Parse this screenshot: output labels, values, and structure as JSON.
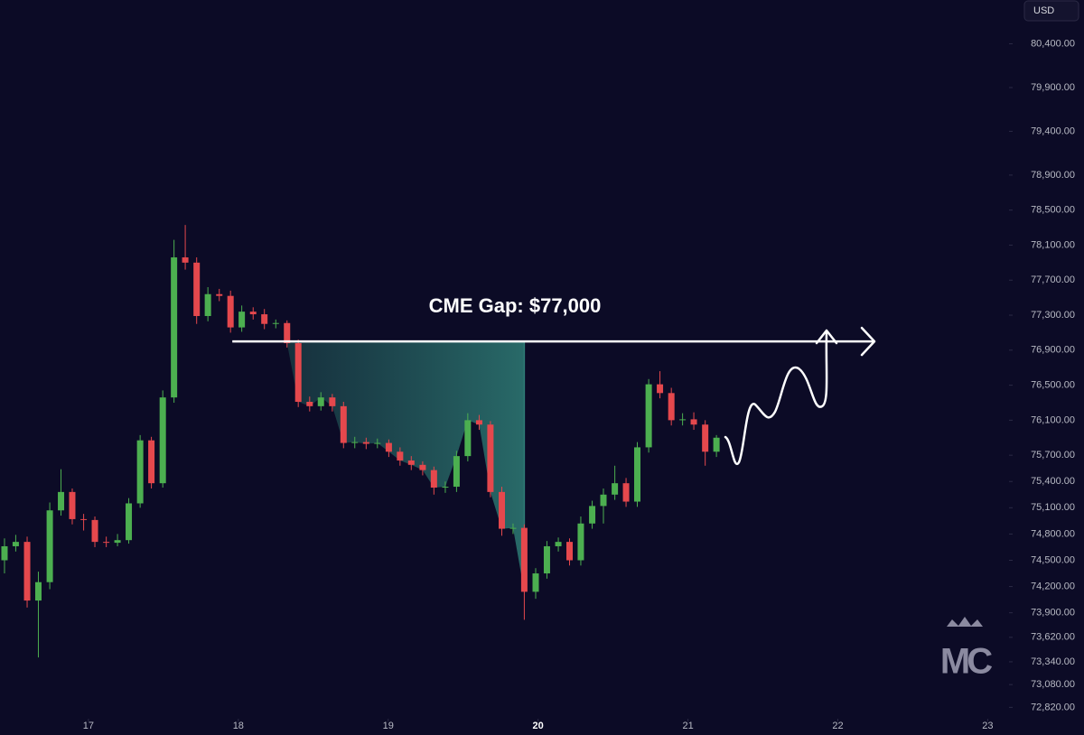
{
  "chart_data": {
    "type": "candlestick",
    "currency": "USD",
    "annotation": "CME Gap: $77,000",
    "gap_level": 77000,
    "logo": "MC",
    "up_color": "#4caf50",
    "down_color": "#e5484d",
    "x": [
      16.44,
      16.515,
      16.591,
      16.666,
      16.742,
      16.817,
      16.892,
      16.968,
      17.043,
      17.119,
      17.194,
      17.269,
      17.345,
      17.42,
      17.496,
      17.571,
      17.646,
      17.722,
      17.797,
      17.873,
      17.948,
      18.023,
      18.099,
      18.174,
      18.25,
      18.325,
      18.4,
      18.476,
      18.551,
      18.627,
      18.702,
      18.777,
      18.853,
      18.928,
      19.004,
      19.079,
      19.154,
      19.23,
      19.305,
      19.381,
      19.456,
      19.531,
      19.607,
      19.682,
      19.758,
      19.833,
      19.908,
      19.984,
      20.059,
      20.135,
      20.21,
      20.285,
      20.361,
      20.436,
      20.512,
      20.587,
      20.662,
      20.738,
      20.813,
      20.889,
      20.964,
      21.039,
      21.115,
      21.19
    ],
    "open": [
      74500,
      74660,
      74710,
      74040,
      74250,
      75070,
      75280,
      74970,
      74960,
      74710,
      74700,
      74730,
      75150,
      75870,
      75380,
      76360,
      77960,
      77900,
      77290,
      77540,
      77520,
      77160,
      77340,
      77310,
      77200,
      77210,
      76980,
      76310,
      76260,
      76360,
      76260,
      75840,
      75850,
      75830,
      75840,
      75740,
      75640,
      75590,
      75530,
      75330,
      75340,
      75690,
      76100,
      76050,
      75280,
      74860,
      74870,
      74140,
      74350,
      74660,
      74710,
      74500,
      74920,
      75120,
      75250,
      75380,
      75170,
      75790,
      76510,
      76410,
      76100,
      76110,
      76050,
      75740
    ],
    "high": [
      74750,
      74790,
      74770,
      74370,
      75160,
      75540,
      75320,
      75030,
      75000,
      74770,
      74800,
      75210,
      75930,
      75910,
      76440,
      78160,
      78330,
      77960,
      77620,
      77600,
      77580,
      77410,
      77390,
      77370,
      77250,
      77240,
      77020,
      76370,
      76420,
      76400,
      76310,
      75910,
      75900,
      75890,
      75880,
      75790,
      75690,
      75630,
      75570,
      75400,
      75750,
      76180,
      76160,
      76090,
      75340,
      74920,
      74910,
      74410,
      74720,
      74760,
      74750,
      75000,
      75180,
      75320,
      75580,
      75440,
      75850,
      76570,
      76660,
      76470,
      76180,
      76190,
      76100,
      75930
    ],
    "low": [
      74350,
      74600,
      73960,
      73390,
      74170,
      75010,
      74910,
      74840,
      74650,
      74650,
      74660,
      74690,
      75100,
      75320,
      75330,
      76300,
      77820,
      77200,
      77230,
      77460,
      77100,
      77110,
      77250,
      77140,
      77150,
      76930,
      76250,
      76200,
      76210,
      76200,
      75780,
      75780,
      75770,
      75780,
      75680,
      75580,
      75530,
      75470,
      75250,
      75270,
      75280,
      75630,
      75990,
      75220,
      74780,
      74800,
      73820,
      74060,
      74290,
      74600,
      74440,
      74440,
      74860,
      74920,
      75190,
      75110,
      75110,
      75730,
      76350,
      76040,
      76040,
      75990,
      75580,
      75680
    ],
    "close": [
      74660,
      74710,
      74040,
      74250,
      75070,
      75280,
      74970,
      74960,
      74710,
      74700,
      74730,
      75150,
      75870,
      75380,
      76360,
      77960,
      77900,
      77290,
      77540,
      77520,
      77160,
      77340,
      77310,
      77200,
      77210,
      76980,
      76310,
      76260,
      76360,
      76260,
      75840,
      75850,
      75830,
      75840,
      75740,
      75640,
      75590,
      75530,
      75330,
      75340,
      75690,
      76100,
      76050,
      75280,
      74860,
      74870,
      74140,
      74350,
      74660,
      74710,
      74500,
      74920,
      75120,
      75250,
      75380,
      75170,
      75790,
      76510,
      76410,
      76100,
      76110,
      76050,
      75740,
      75900
    ],
    "xlim": [
      16.41,
      23.13
    ],
    "xticks": [
      17,
      18,
      19,
      20,
      21,
      22,
      23
    ],
    "ylim": [
      72700,
      80900
    ],
    "yticks": [
      {
        "value": 80400,
        "label": "80,400.00"
      },
      {
        "value": 79900,
        "label": "79,900.00"
      },
      {
        "value": 79400,
        "label": "79,400.00"
      },
      {
        "value": 78900,
        "label": "78,900.00"
      },
      {
        "value": 78500,
        "label": "78,500.00"
      },
      {
        "value": 78100,
        "label": "78,100.00"
      },
      {
        "value": 77700,
        "label": "77,700.00"
      },
      {
        "value": 77300,
        "label": "77,300.00"
      },
      {
        "value": 76900,
        "label": "76,900.00"
      },
      {
        "value": 76500,
        "label": "76,500.00"
      },
      {
        "value": 76100,
        "label": "76,100.00"
      },
      {
        "value": 75700,
        "label": "75,700.00"
      },
      {
        "value": 75400,
        "label": "75,400.00"
      },
      {
        "value": 75100,
        "label": "75,100.00"
      },
      {
        "value": 74800,
        "label": "74,800.00"
      },
      {
        "value": 74500,
        "label": "74,500.00"
      },
      {
        "value": 74200,
        "label": "74,200.00"
      },
      {
        "value": 73900,
        "label": "73,900.00"
      },
      {
        "value": 73620,
        "label": "73,620.00"
      },
      {
        "value": 73340,
        "label": "73,340.00"
      },
      {
        "value": 73080,
        "label": "73,080.00"
      },
      {
        "value": 72820,
        "label": "72,820.00"
      }
    ]
  }
}
